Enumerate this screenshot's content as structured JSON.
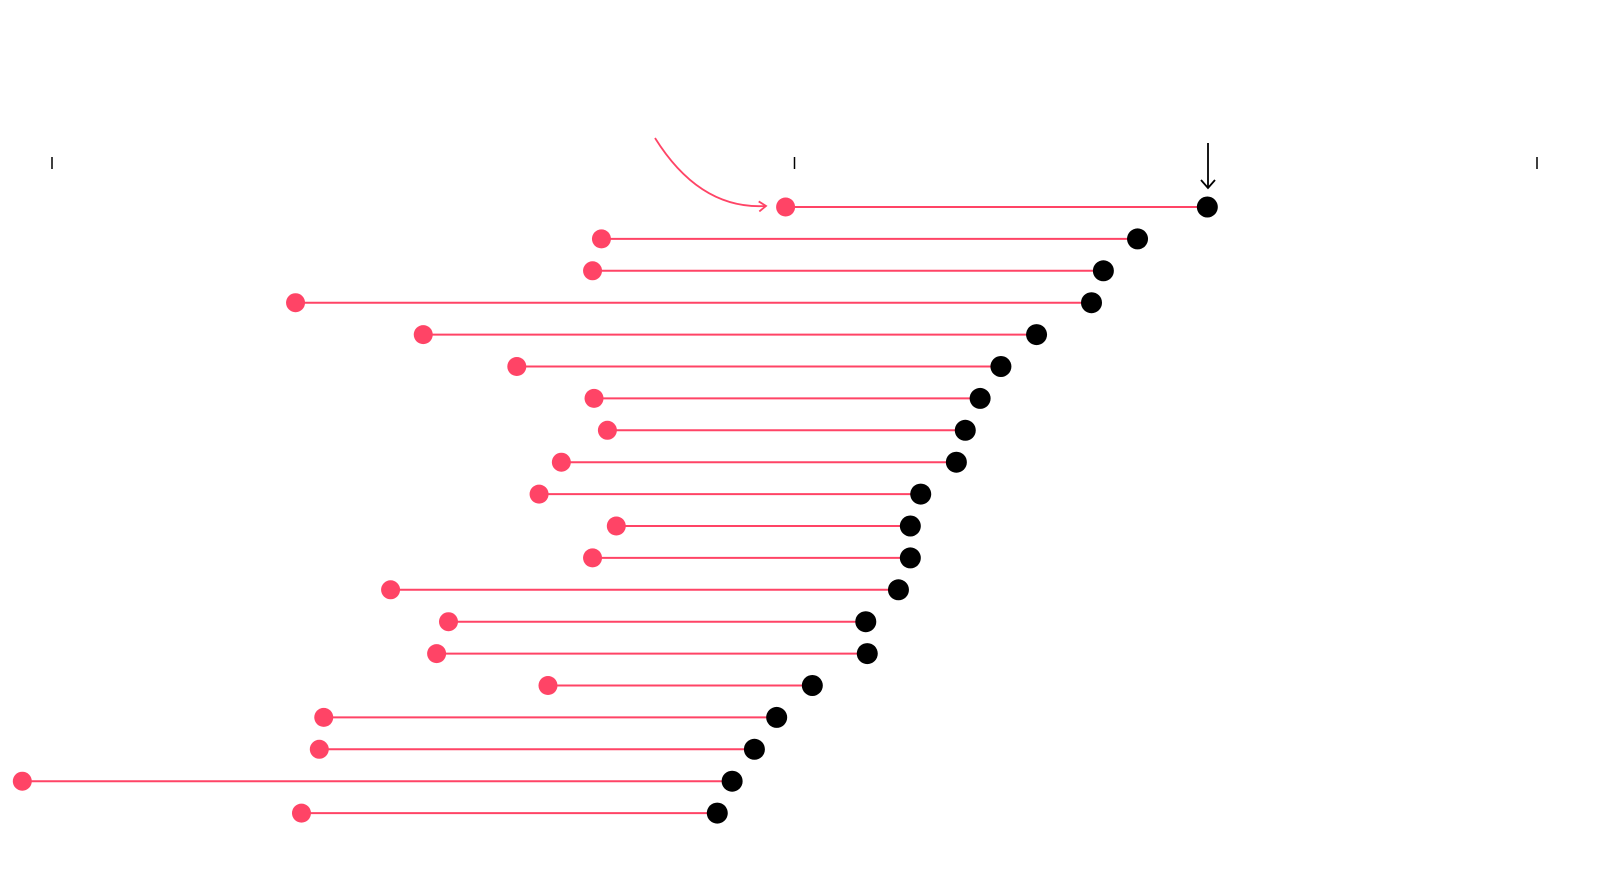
{
  "chart_data": {
    "type": "dumbbell",
    "categories": [
      null,
      null,
      null,
      null,
      null,
      null,
      null,
      null,
      null,
      null,
      null,
      null,
      null,
      null,
      null,
      null,
      null,
      null,
      null,
      null
    ],
    "series": [
      {
        "color": "#ff4466",
        "values": [
          49.4,
          37.0,
          36.4,
          16.4,
          25.0,
          31.3,
          36.5,
          37.4,
          34.3,
          32.8,
          38.0,
          36.4,
          22.8,
          26.7,
          25.9,
          33.4,
          18.3,
          18.0,
          -2.0,
          16.8
        ]
      },
      {
        "color": "#000000",
        "values": [
          77.8,
          73.1,
          70.8,
          70.0,
          66.3,
          63.9,
          62.5,
          61.5,
          60.9,
          58.5,
          57.8,
          57.8,
          57.0,
          54.8,
          54.9,
          51.2,
          48.8,
          47.3,
          45.8,
          44.8
        ]
      }
    ],
    "xlim": [
      0,
      100
    ],
    "xticks": [
      0,
      50,
      100
    ]
  }
}
